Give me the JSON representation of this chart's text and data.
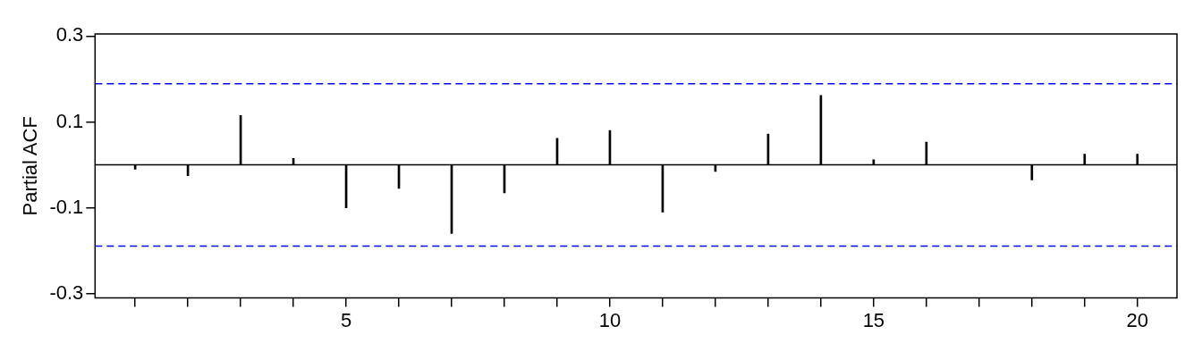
{
  "chart_data": {
    "type": "bar",
    "ylabel": "Partial ACF",
    "x": [
      1,
      2,
      3,
      4,
      5,
      6,
      7,
      8,
      9,
      10,
      11,
      12,
      13,
      14,
      15,
      16,
      17,
      18,
      19,
      20
    ],
    "series": [
      {
        "color": "#000000",
        "values": [
          -0.01,
          -0.025,
          0.115,
          0.015,
          -0.1,
          -0.055,
          -0.16,
          -0.065,
          0.062,
          0.08,
          -0.11,
          -0.015,
          0.072,
          0.162,
          0.012,
          0.053,
          null,
          -0.035,
          0.025,
          0.025
        ]
      }
    ],
    "xlim": [
      0.24,
      20.75
    ],
    "xticks": [
      {
        "value": 1,
        "label": null
      },
      {
        "value": 2,
        "label": null
      },
      {
        "value": 3,
        "label": null
      },
      {
        "value": 4,
        "label": null
      },
      5,
      {
        "value": 6,
        "label": null
      },
      {
        "value": 7,
        "label": null
      },
      {
        "value": 8,
        "label": null
      },
      {
        "value": 9,
        "label": null
      },
      10,
      {
        "value": 11,
        "label": null
      },
      {
        "value": 12,
        "label": null
      },
      {
        "value": 13,
        "label": null
      },
      {
        "value": 14,
        "label": null
      },
      15,
      {
        "value": 16,
        "label": null
      },
      {
        "value": 17,
        "label": null
      },
      {
        "value": 18,
        "label": null
      },
      {
        "value": 19,
        "label": null
      },
      20
    ],
    "ylim": [
      -0.31,
      0.305
    ],
    "yticks": [
      -0.3,
      -0.1,
      0.1,
      0.3
    ],
    "ref_lines": [
      {
        "axis": "y",
        "value": 0,
        "color": "#000000",
        "line_style": "solid"
      },
      {
        "axis": "y",
        "value": 0.189,
        "color": "#0000ff",
        "line_style": "dashed"
      },
      {
        "axis": "y",
        "value": -0.189,
        "color": "#0000ff",
        "line_style": "dashed"
      }
    ],
    "grid": false,
    "legend": false
  }
}
